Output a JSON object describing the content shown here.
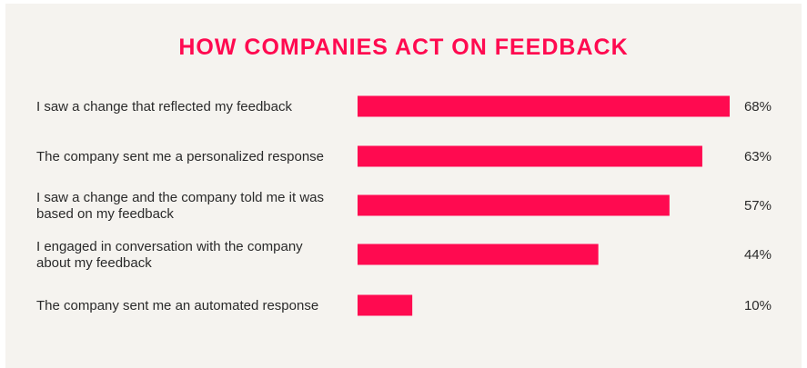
{
  "accent_color": "#ff0a50",
  "chart_data": {
    "type": "bar",
    "orientation": "horizontal",
    "title": "HOW COMPANIES ACT ON FEEDBACK",
    "categories": [
      "I saw a change that reflected my feedback",
      "The company sent me a personalized response",
      "I saw a change and the company told me it was based on my feedback",
      "I engaged in conversation with the company about my feedback",
      "The company sent me an automated response"
    ],
    "category_lines": [
      [
        "I saw a change that reflected my feedback"
      ],
      [
        "The company sent me a personalized response"
      ],
      [
        "I saw a change and the company told me it was",
        "based on my feedback"
      ],
      [
        "I engaged in conversation with the company",
        "about my feedback"
      ],
      [
        "The company sent me an automated response"
      ]
    ],
    "values": [
      68,
      63,
      57,
      44,
      10
    ],
    "value_labels": [
      "68%",
      "63%",
      "57%",
      "44%",
      "10%"
    ],
    "unit": "%",
    "xlim": [
      0,
      68
    ],
    "grid": false,
    "legend": "none"
  }
}
